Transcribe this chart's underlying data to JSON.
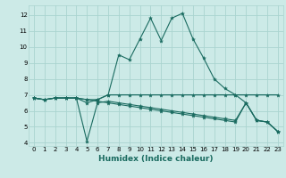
{
  "xlabel": "Humidex (Indice chaleur)",
  "bg_color": "#cceae7",
  "line_color": "#1a6b60",
  "grid_color": "#aad4d0",
  "xlim": [
    -0.5,
    23.5
  ],
  "ylim": [
    3.8,
    12.6
  ],
  "xticks": [
    0,
    1,
    2,
    3,
    4,
    5,
    6,
    7,
    8,
    9,
    10,
    11,
    12,
    13,
    14,
    15,
    16,
    17,
    18,
    19,
    20,
    21,
    22,
    23
  ],
  "yticks": [
    4,
    5,
    6,
    7,
    8,
    9,
    10,
    11,
    12
  ],
  "series": [
    {
      "x": [
        0,
        1,
        2,
        3,
        4,
        5,
        6,
        7,
        8,
        9,
        10,
        11,
        12,
        13,
        14,
        15,
        16,
        17,
        18,
        19,
        20,
        21,
        22,
        23
      ],
      "y": [
        6.8,
        6.7,
        6.8,
        6.8,
        6.8,
        6.5,
        6.7,
        7.0,
        9.5,
        9.2,
        10.5,
        11.8,
        10.4,
        11.8,
        12.1,
        10.5,
        9.3,
        8.0,
        7.4,
        7.0,
        6.5,
        5.4,
        5.3,
        4.7
      ]
    },
    {
      "x": [
        0,
        1,
        2,
        3,
        4,
        5,
        6,
        7,
        8,
        9,
        10,
        11,
        12,
        13,
        14,
        15,
        16,
        17,
        18,
        19,
        20,
        21,
        22,
        23
      ],
      "y": [
        6.8,
        6.7,
        6.8,
        6.8,
        6.8,
        6.7,
        6.7,
        7.0,
        7.0,
        7.0,
        7.0,
        7.0,
        7.0,
        7.0,
        7.0,
        7.0,
        7.0,
        7.0,
        7.0,
        7.0,
        7.0,
        7.0,
        7.0,
        7.0
      ]
    },
    {
      "x": [
        0,
        1,
        2,
        3,
        4,
        5,
        6,
        7,
        8,
        9,
        10,
        11,
        12,
        13,
        14,
        15,
        16,
        17,
        18,
        19,
        20,
        21,
        22,
        23
      ],
      "y": [
        6.8,
        6.7,
        6.8,
        6.8,
        6.8,
        6.7,
        6.6,
        6.5,
        6.4,
        6.3,
        6.2,
        6.1,
        6.0,
        5.9,
        5.8,
        5.7,
        5.6,
        5.5,
        5.4,
        5.3,
        6.5,
        5.4,
        5.3,
        4.7
      ]
    },
    {
      "x": [
        0,
        1,
        2,
        3,
        4,
        5,
        6,
        7,
        8,
        9,
        10,
        11,
        12,
        13,
        14,
        15,
        16,
        17,
        18,
        19,
        20,
        21,
        22,
        23
      ],
      "y": [
        6.8,
        6.7,
        6.8,
        6.8,
        6.8,
        4.1,
        6.5,
        6.6,
        6.5,
        6.4,
        6.3,
        6.2,
        6.1,
        6.0,
        5.9,
        5.8,
        5.7,
        5.6,
        5.5,
        5.4,
        6.5,
        5.4,
        5.3,
        4.7
      ]
    }
  ],
  "marker": "*",
  "markersize": 3.0,
  "linewidth": 0.8,
  "tick_fontsize": 5.0,
  "xlabel_fontsize": 6.5
}
